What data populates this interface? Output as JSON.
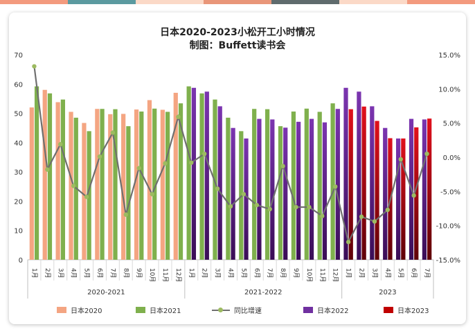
{
  "title_line1": "日本2020-2023小松开工小时情况",
  "title_line2": "制图：Buffett读书会",
  "top_bar_colors": [
    "#f39a7e",
    "#5b9aa0",
    "#fbd9c7",
    "#e99679",
    "#5f6b6d",
    "#fbd9c7",
    "#f39a7e"
  ],
  "chart_data": {
    "type": "bar",
    "groups": [
      {
        "label": "2020-2021",
        "months": [
          "1月",
          "2月",
          "3月",
          "4月",
          "5月",
          "6月",
          "7月",
          "8月",
          "9月",
          "10月",
          "11月",
          "12月"
        ]
      },
      {
        "label": "2021-2022",
        "months": [
          "1月",
          "2月",
          "3月",
          "4月",
          "5月",
          "6月",
          "7月",
          "8月",
          "9月",
          "10月",
          "11月",
          "12月"
        ]
      },
      {
        "label": "2023",
        "months": [
          "1月",
          "2月",
          "3月",
          "4月",
          "5月",
          "6月",
          "7月"
        ]
      }
    ],
    "y_left": {
      "min": 0,
      "max": 70,
      "ticks": [
        0,
        10,
        20,
        30,
        40,
        50,
        60,
        70
      ]
    },
    "y_right": {
      "min": -15,
      "max": 15,
      "ticks": [
        "-15.0%",
        "-10.0%",
        "-5.0%",
        "0.0%",
        "5.0%",
        "10.0%",
        "15.0%"
      ]
    },
    "series": [
      {
        "name": "日本2020",
        "color": "#f4a582",
        "axis": "left",
        "values": [
          52,
          58,
          53.8,
          50.5,
          46.7,
          51.5,
          49.7,
          49.8,
          51.3,
          54.5,
          51.2,
          57
        ]
      },
      {
        "name": "日本2021",
        "color": "#7fb04d",
        "axis": "left",
        "values": [
          59.2,
          56.8,
          54.7,
          48.5,
          43.9,
          51.5,
          51.4,
          45.6,
          50.6,
          51.6,
          50.5,
          53.4,
          59.2,
          56.8,
          54.7,
          48.5,
          43.9,
          51.5,
          51.4,
          45.6,
          50.6,
          51.6,
          50.5,
          53.4
        ]
      },
      {
        "name": "日本2022",
        "color": "#7030a0",
        "axis": "left",
        "values": [
          58.7,
          57.4,
          52.4,
          45,
          41.4,
          48.1,
          47.9,
          45.1,
          47.1,
          48.1,
          46.9,
          51.5,
          58.7,
          57.4,
          52.4,
          45,
          41.4,
          48.1,
          47.9
        ]
      },
      {
        "name": "日本2023",
        "color": "#c00000",
        "axis": "left",
        "values": [
          51.4,
          52.3,
          47.4,
          41.5,
          41.4,
          45.2,
          48.2
        ]
      },
      {
        "name": "同比增速",
        "color": "#9dbb61",
        "line_color": "#6f6f6f",
        "axis": "right",
        "type": "line",
        "values": [
          13.3,
          -1.8,
          1.9,
          -4.2,
          -5.8,
          0.1,
          3.6,
          -8.4,
          -1.6,
          -5.4,
          -0.9,
          5.9,
          -0.8,
          0.5,
          -4.6,
          -7.2,
          -5.4,
          -7,
          -7.6,
          -1.3,
          -7.3,
          -7.3,
          -8.6,
          -4.3,
          -12.4,
          -8.7,
          -9.4,
          -7.7,
          -0.3,
          -5.6,
          0.5
        ]
      }
    ],
    "legend": [
      "日本2020",
      "日本2021",
      "同比增速",
      "日本2022",
      "日本2023"
    ],
    "legend_position": "bottom"
  }
}
